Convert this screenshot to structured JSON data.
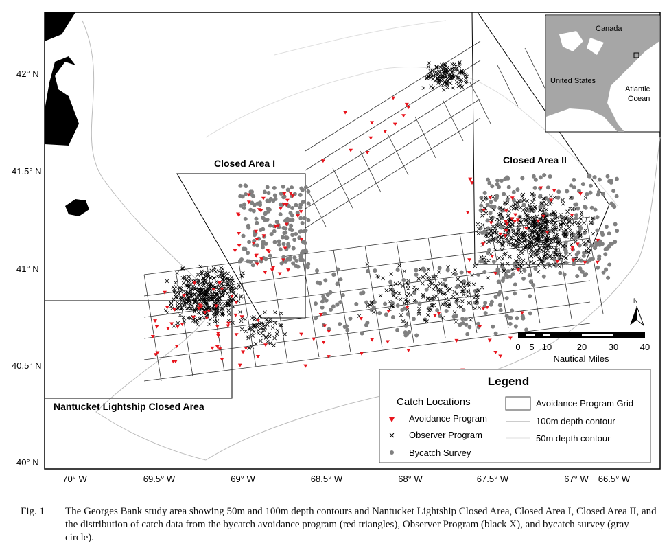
{
  "map": {
    "lat_labels": [
      "42° N",
      "41.5° N",
      "41° N",
      "40.5° N",
      "40° N"
    ],
    "lon_labels": [
      "70° W",
      "69.5° W",
      "69° W",
      "68.5° W",
      "68° W",
      "67.5° W",
      "67° W",
      "66.5° W"
    ],
    "area_labels": {
      "ca1": "Closed Area I",
      "ca2": "Closed Area II",
      "nlca": "Nantucket Lightship Closed Area"
    },
    "inset": {
      "canada": "Canada",
      "us": "United States",
      "atlantic_1": "Atlantic",
      "atlantic_2": "Ocean"
    },
    "north_label": "N",
    "scale": {
      "ticks": [
        "0",
        "5",
        "10",
        "20",
        "30",
        "40"
      ],
      "unit": "Nautical Miles"
    },
    "legend": {
      "title": "Legend",
      "catch_title": "Catch Locations",
      "items": [
        "Avoidance Program",
        "Observer Program",
        "Bycatch Survey"
      ],
      "grid": "Avoidance Program Grid",
      "c100": "100m depth contour",
      "c50": "50m depth contour"
    },
    "colors": {
      "avoidance": "#e8141c",
      "observer": "#000000",
      "survey": "#808080",
      "land": "#000000",
      "inset_land": "#a6a6a6"
    }
  },
  "caption": {
    "number": "Fig. 1",
    "text": "The Georges Bank study area showing 50m and 100m depth contours and Nantucket Lightship Closed Area, Closed Area I, Closed Area II, and the distribution of catch data from the bycatch avoidance program (red triangles), Observer Program (black X), and bycatch survey (gray circle)."
  }
}
